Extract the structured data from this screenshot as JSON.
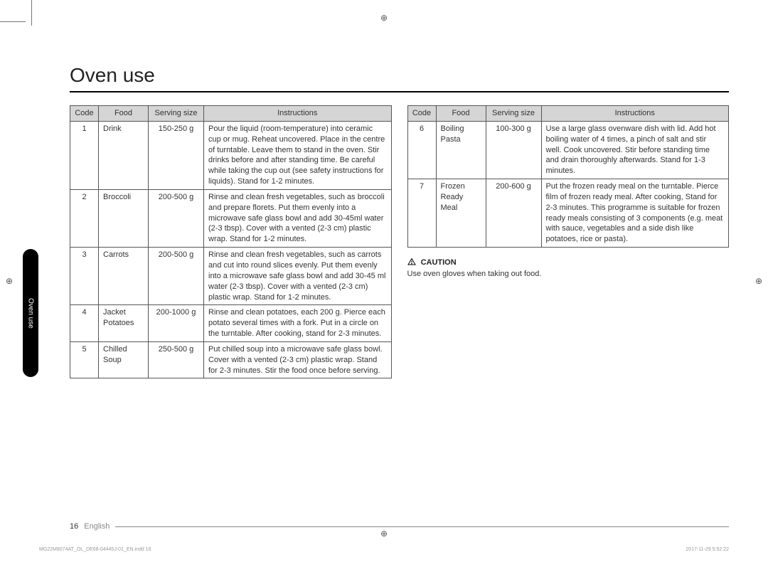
{
  "page": {
    "title": "Oven use",
    "side_tab": "Oven use",
    "page_number": "16",
    "language": "English"
  },
  "table_headers": {
    "code": "Code",
    "food": "Food",
    "size": "Serving size",
    "instr": "Instructions"
  },
  "left_rows": [
    {
      "code": "1",
      "food": "Drink",
      "size": "150-250 g",
      "instr": "Pour the liquid (room-temperature) into ceramic cup or mug. Reheat uncovered. Place in the centre of turntable. Leave them to stand in the oven. Stir drinks before and after standing time. Be careful while taking the cup out (see safety instructions for liquids). Stand for 1-2 minutes."
    },
    {
      "code": "2",
      "food": "Broccoli",
      "size": "200-500 g",
      "instr": "Rinse and clean fresh vegetables, such as broccoli and prepare florets. Put them evenly into a microwave safe glass bowl and add 30-45ml water (2-3 tbsp). Cover with a vented (2-3 cm) plastic wrap. Stand for 1-2 minutes."
    },
    {
      "code": "3",
      "food": "Carrots",
      "size": "200-500 g",
      "instr": "Rinse and clean fresh vegetables, such as carrots and cut into round slices evenly. Put them evenly into a microwave safe glass bowl and add 30-45 ml water (2-3 tbsp). Cover with a vented (2-3 cm) plastic wrap. Stand for 1-2 minutes."
    },
    {
      "code": "4",
      "food": "Jacket Potatoes",
      "size": "200-1000 g",
      "instr": "Rinse and clean potatoes, each 200 g. Pierce each potato several times with a fork. Put in a circle on the turntable. After cooking, stand for 2-3 minutes."
    },
    {
      "code": "5",
      "food": "Chilled Soup",
      "size": "250-500 g",
      "instr": "Put chilled soup into a microwave safe glass bowl. Cover with a vented (2-3 cm) plastic wrap. Stand for 2-3 minutes. Stir the food once before serving."
    }
  ],
  "right_rows": [
    {
      "code": "6",
      "food": "Boiling Pasta",
      "size": "100-300 g",
      "instr": "Use a large glass ovenware dish with lid. Add hot boiling water of 4 times, a pinch of salt and stir well. Cook uncovered. Stir before standing time and drain thoroughly afterwards. Stand for 1-3 minutes."
    },
    {
      "code": "7",
      "food": "Frozen Ready Meal",
      "size": "200-600 g",
      "instr": "Put the frozen ready meal on the turntable. Pierce film of frozen ready meal. After cooking, Stand for 2-3 minutes. This programme is suitable for frozen ready meals consisting of 3 components (e.g. meat with sauce, vegetables and a side dish like potatoes, rice or pasta)."
    }
  ],
  "caution": {
    "label": "CAUTION",
    "text": "Use oven gloves when taking out food."
  },
  "imprint": {
    "left": "MG22M8074AT_OL_DE68-04445J-01_EN.indd   16",
    "right": "2017-11-29   5:52:22"
  },
  "colors": {
    "header_bg": "#d5d5d5",
    "border": "#555555",
    "text": "#333333",
    "tab_bg": "#000000"
  }
}
